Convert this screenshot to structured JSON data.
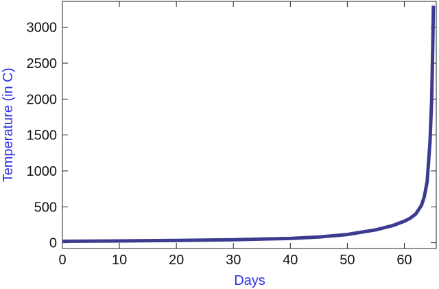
{
  "chart_data": {
    "type": "line",
    "xlabel": "Days",
    "ylabel": "Temperature (in C)",
    "x": [
      0,
      10,
      20,
      30,
      40,
      45,
      50,
      55,
      58,
      60,
      61,
      62,
      63,
      63.5,
      64,
      64.5,
      64.8,
      65,
      65.1
    ],
    "series": [
      {
        "color": "#3b3b90",
        "values": [
          20,
          25,
          32,
          42,
          60,
          80,
          115,
          180,
          240,
          300,
          340,
          400,
          520,
          640,
          850,
          1400,
          2000,
          2800,
          3300
        ]
      }
    ],
    "xlim": [
      0,
      65.6
    ],
    "ylim": [
      -80,
      3360
    ],
    "xticks": [
      0,
      10,
      20,
      30,
      40,
      50,
      60
    ],
    "yticks": [
      0,
      500,
      1000,
      1500,
      2000,
      2500,
      3000
    ],
    "label_color": "#2f2fe0"
  }
}
